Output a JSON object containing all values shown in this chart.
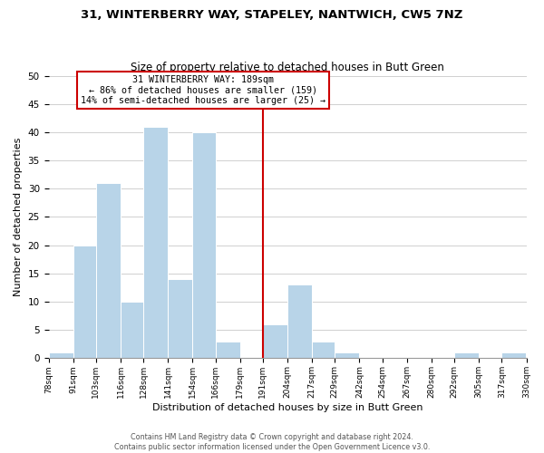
{
  "title": "31, WINTERBERRY WAY, STAPELEY, NANTWICH, CW5 7NZ",
  "subtitle": "Size of property relative to detached houses in Butt Green",
  "xlabel": "Distribution of detached houses by size in Butt Green",
  "ylabel": "Number of detached properties",
  "footer_line1": "Contains HM Land Registry data © Crown copyright and database right 2024.",
  "footer_line2": "Contains public sector information licensed under the Open Government Licence v3.0.",
  "bin_edges": [
    78,
    91,
    103,
    116,
    128,
    141,
    154,
    166,
    179,
    191,
    204,
    217,
    229,
    242,
    254,
    267,
    280,
    292,
    305,
    317,
    330
  ],
  "bin_labels": [
    "78sqm",
    "91sqm",
    "103sqm",
    "116sqm",
    "128sqm",
    "141sqm",
    "154sqm",
    "166sqm",
    "179sqm",
    "191sqm",
    "204sqm",
    "217sqm",
    "229sqm",
    "242sqm",
    "254sqm",
    "267sqm",
    "280sqm",
    "292sqm",
    "305sqm",
    "317sqm",
    "330sqm"
  ],
  "counts": [
    1,
    20,
    31,
    10,
    41,
    14,
    40,
    3,
    0,
    6,
    13,
    3,
    1,
    0,
    0,
    0,
    0,
    1,
    0,
    1
  ],
  "bar_color": "#b8d4e8",
  "property_line_x": 191,
  "property_line_color": "#cc0000",
  "annotation_title": "31 WINTERBERRY WAY: 189sqm",
  "annotation_line1": "← 86% of detached houses are smaller (159)",
  "annotation_line2": "14% of semi-detached houses are larger (25) →",
  "annotation_box_edge": "#cc0000",
  "ylim": [
    0,
    50
  ],
  "yticks": [
    0,
    5,
    10,
    15,
    20,
    25,
    30,
    35,
    40,
    45,
    50
  ],
  "background_color": "#ffffff",
  "grid_color": "#d0d0d0"
}
